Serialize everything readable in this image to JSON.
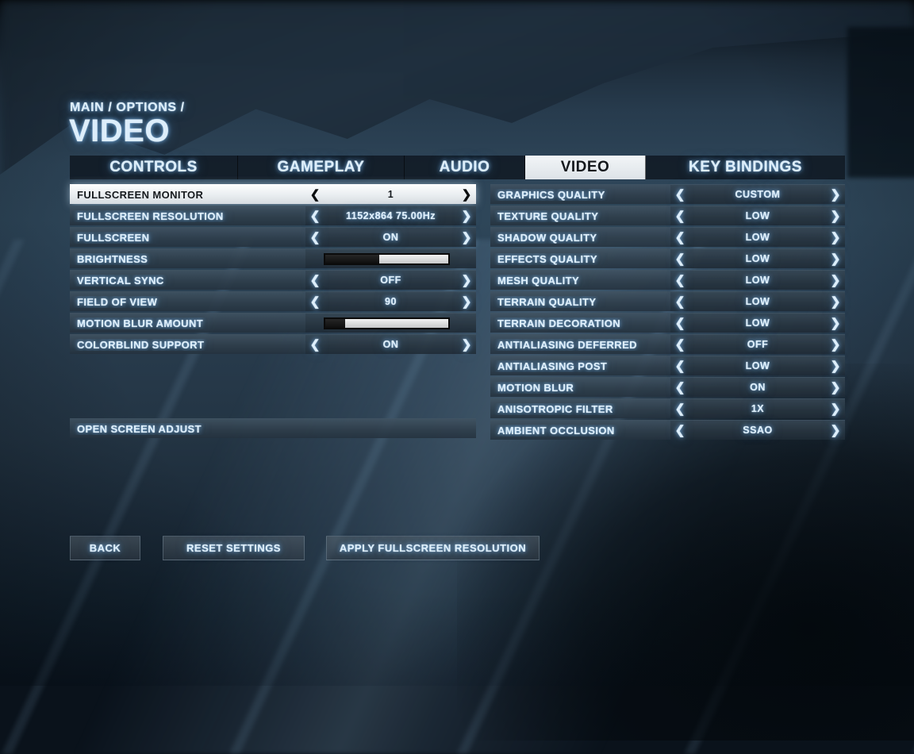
{
  "breadcrumb": "MAIN / OPTIONS /",
  "page_title": "VIDEO",
  "icons": {
    "chevron_left": "❮",
    "chevron_right": "❯"
  },
  "tabs": [
    {
      "label": "CONTROLS",
      "active": false
    },
    {
      "label": "GAMEPLAY",
      "active": false
    },
    {
      "label": "AUDIO",
      "active": false
    },
    {
      "label": "VIDEO",
      "active": true
    },
    {
      "label": "KEY BINDINGS",
      "active": false
    }
  ],
  "left_panel": {
    "rows": [
      {
        "label": "FULLSCREEN MONITOR",
        "type": "selector",
        "value": "1",
        "selected": true
      },
      {
        "label": "FULLSCREEN RESOLUTION",
        "type": "selector",
        "value": "1152x864 75.00Hz",
        "selected": false
      },
      {
        "label": "FULLSCREEN",
        "type": "selector",
        "value": "ON",
        "selected": false
      },
      {
        "label": "BRIGHTNESS",
        "type": "slider",
        "percent": 44
      },
      {
        "label": "VERTICAL SYNC",
        "type": "selector",
        "value": "OFF",
        "selected": false
      },
      {
        "label": "FIELD OF VIEW",
        "type": "selector",
        "value": "90",
        "selected": false
      },
      {
        "label": "MOTION BLUR AMOUNT",
        "type": "slider",
        "percent": 16
      },
      {
        "label": "COLORBLIND SUPPORT",
        "type": "selector",
        "value": "ON",
        "selected": false
      }
    ],
    "action_row": {
      "label": "OPEN SCREEN ADJUST"
    }
  },
  "right_panel": {
    "rows": [
      {
        "label": "GRAPHICS QUALITY",
        "value": "CUSTOM"
      },
      {
        "label": "TEXTURE QUALITY",
        "value": "LOW"
      },
      {
        "label": "SHADOW QUALITY",
        "value": "LOW"
      },
      {
        "label": "EFFECTS QUALITY",
        "value": "LOW"
      },
      {
        "label": "MESH QUALITY",
        "value": "LOW"
      },
      {
        "label": "TERRAIN QUALITY",
        "value": "LOW"
      },
      {
        "label": "TERRAIN DECORATION",
        "value": "LOW"
      },
      {
        "label": "ANTIALIASING DEFERRED",
        "value": "OFF"
      },
      {
        "label": "ANTIALIASING POST",
        "value": "LOW"
      },
      {
        "label": "MOTION BLUR",
        "value": "ON"
      },
      {
        "label": "ANISOTROPIC FILTER",
        "value": "1X"
      },
      {
        "label": "AMBIENT OCCLUSION",
        "value": "SSAO"
      }
    ]
  },
  "buttons": [
    {
      "label": "BACK"
    },
    {
      "label": "RESET SETTINGS"
    },
    {
      "label": "APPLY FULLSCREEN RESOLUTION"
    }
  ],
  "colors": {
    "accent_glow": "#7db9f0",
    "row_bg": "#33424f",
    "selected_row_bg": "#eef1f4",
    "background_base": "#273a4b"
  }
}
